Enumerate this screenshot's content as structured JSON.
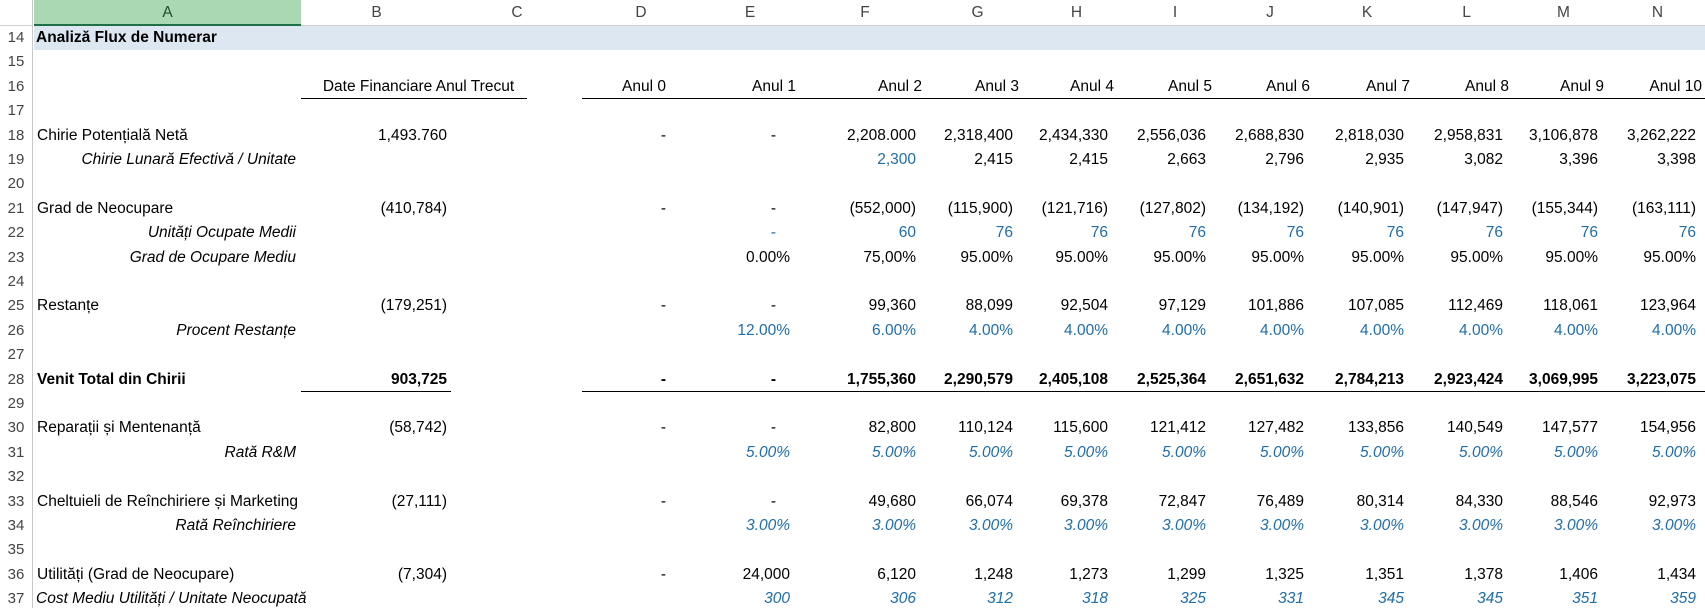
{
  "col_headers": [
    "A",
    "B",
    "C",
    "D",
    "E",
    "F",
    "G",
    "H",
    "I",
    "J",
    "K",
    "L",
    "M",
    "N"
  ],
  "row_numbers": [
    "14",
    "15",
    "16",
    "17",
    "18",
    "19",
    "20",
    "21",
    "22",
    "23",
    "24",
    "25",
    "26",
    "27",
    "28",
    "29",
    "30",
    "31",
    "32",
    "33",
    "34",
    "35",
    "36",
    "37"
  ],
  "title": "Analiză Flux de Numerar",
  "prior_year_header": "Date Financiare Anul Trecut",
  "year_headers": [
    "Anul 0",
    "Anul 1",
    "Anul 2",
    "Anul 3",
    "Anul 4",
    "Anul 5",
    "Anul 6",
    "Anul 7",
    "Anul 8",
    "Anul 9",
    "Anul 10"
  ],
  "rows": [
    {
      "row": "18",
      "label": "Chirie Potențială Netă",
      "style": "plain",
      "prior": "1,493.760",
      "values": [
        "-",
        "-",
        "2,208.000",
        "2,318,400",
        "2,434,330",
        "2,556,036",
        "2,688,830",
        "2,818,030",
        "2,958,831",
        "3,106,878",
        "3,262,222"
      ]
    },
    {
      "row": "19",
      "label": "Chirie Lunară Efectivă / Unitate",
      "style": "italic",
      "prior": "",
      "values": [
        "",
        "",
        "2,300",
        "2,415",
        "2,415",
        "2,663",
        "2,796",
        "2,935",
        "3,082",
        "3,396",
        "3,398"
      ],
      "blue": [
        2
      ]
    },
    {
      "row": "21",
      "label": "Grad de Neocupare",
      "style": "plain",
      "prior": "(410,784)",
      "values": [
        "-",
        "-",
        "(552,000)",
        "(115,900)",
        "(121,716)",
        "(127,802)",
        "(134,192)",
        "(140,901)",
        "(147,947)",
        "(155,344)",
        "(163,111)"
      ]
    },
    {
      "row": "22",
      "label": "Unități Ocupate Medii",
      "style": "italic",
      "prior": "",
      "values": [
        "",
        "-",
        "60",
        "76",
        "76",
        "76",
        "76",
        "76",
        "76",
        "76",
        "76"
      ],
      "blue": [
        1,
        2,
        3,
        4,
        5,
        6,
        7,
        8,
        9,
        10
      ]
    },
    {
      "row": "23",
      "label": "Grad de Ocupare Mediu",
      "style": "italic",
      "prior": "",
      "values": [
        "",
        "0.00%",
        "75,00%",
        "95.00%",
        "95.00%",
        "95.00%",
        "95.00%",
        "95.00%",
        "95.00%",
        "95.00%",
        "95.00%"
      ]
    },
    {
      "row": "25",
      "label": "Restanțe",
      "style": "plain",
      "prior": "(179,251)",
      "values": [
        "-",
        "-",
        "99,360",
        "88,099",
        "92,504",
        "97,129",
        "101,886",
        "107,085",
        "112,469",
        "118,061",
        "123,964"
      ]
    },
    {
      "row": "26",
      "label": "Procent Restanțe",
      "style": "italic",
      "prior": "",
      "values": [
        "",
        "12.00%",
        "6.00%",
        "4.00%",
        "4.00%",
        "4.00%",
        "4.00%",
        "4.00%",
        "4.00%",
        "4.00%",
        "4.00%"
      ],
      "blue": [
        1,
        2,
        3,
        4,
        5,
        6,
        7,
        8,
        9,
        10
      ]
    },
    {
      "row": "28",
      "label": "Venit Total din Chirii",
      "style": "bold",
      "prior": "903,725",
      "values": [
        "-",
        "-",
        "1,755,360",
        "2,290,579",
        "2,405,108",
        "2,525,364",
        "2,651,632",
        "2,784,213",
        "2,923,424",
        "3,069,995",
        "3,223,075"
      ]
    },
    {
      "row": "30",
      "label": "Reparații și Mentenanță",
      "style": "plain",
      "prior": "(58,742)",
      "values": [
        "-",
        "-",
        "82,800",
        "110,124",
        "115,600",
        "121,412",
        "127,482",
        "133,856",
        "140,549",
        "147,577",
        "154,956"
      ]
    },
    {
      "row": "31",
      "label": "Rată R&M",
      "style": "italic",
      "prior": "",
      "values": [
        "",
        "5.00%",
        "5.00%",
        "5.00%",
        "5.00%",
        "5.00%",
        "5.00%",
        "5.00%",
        "5.00%",
        "5.00%",
        "5.00%"
      ],
      "blue": [
        1,
        2,
        3,
        4,
        5,
        6,
        7,
        8,
        9,
        10
      ],
      "valitalic": true
    },
    {
      "row": "33",
      "label": "Cheltuieli de Reînchiriere și Marketing",
      "style": "plain",
      "prior": "(27,111)",
      "values": [
        "-",
        "-",
        "49,680",
        "66,074",
        "69,378",
        "72,847",
        "76,489",
        "80,314",
        "84,330",
        "88,546",
        "92,973"
      ]
    },
    {
      "row": "34",
      "label": "Rată Reînchiriere",
      "style": "italic",
      "prior": "",
      "values": [
        "",
        "3.00%",
        "3.00%",
        "3.00%",
        "3.00%",
        "3.00%",
        "3.00%",
        "3.00%",
        "3.00%",
        "3.00%",
        "3.00%"
      ],
      "blue": [
        1,
        2,
        3,
        4,
        5,
        6,
        7,
        8,
        9,
        10
      ],
      "valitalic": true
    },
    {
      "row": "36",
      "label": "Utilități (Grad de Neocupare)",
      "style": "plain",
      "prior": "(7,304)",
      "values": [
        "-",
        "24,000",
        "6,120",
        "1,248",
        "1,273",
        "1,299",
        "1,325",
        "1,351",
        "1,378",
        "1,406",
        "1,434"
      ]
    },
    {
      "row": "37",
      "label": "Cost Mediu Utilități / Unitate Neocupată",
      "style": "italic",
      "prior": "",
      "values": [
        "",
        "300",
        "306",
        "312",
        "318",
        "325",
        "331",
        "345",
        "345",
        "351",
        "359"
      ],
      "blue": [
        1,
        2,
        3,
        4,
        5,
        6,
        7,
        8,
        9,
        10
      ],
      "valitalic": true
    }
  ]
}
